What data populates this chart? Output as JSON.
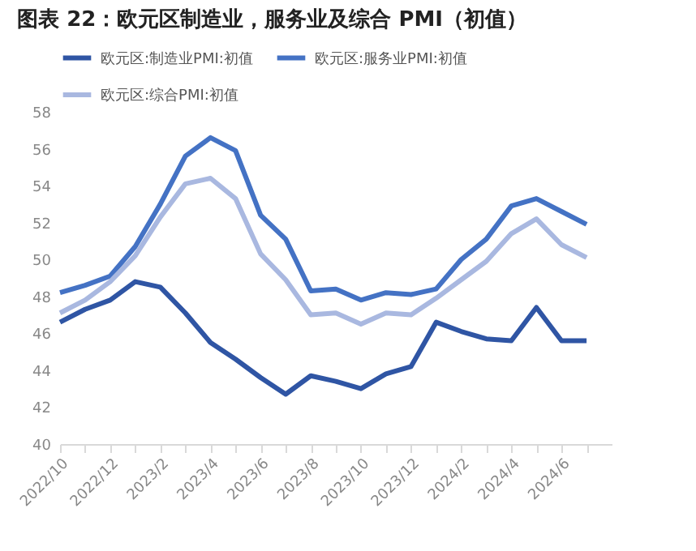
{
  "chart_data": {
    "type": "line",
    "title": "图表 22：欧元区制造业，服务业及综合 PMI（初值）",
    "categories": [
      "2022/10",
      null,
      "2022/12",
      null,
      "2023/2",
      null,
      "2023/4",
      null,
      "2023/6",
      null,
      "2023/8",
      null,
      "2023/10",
      null,
      "2023/12",
      null,
      "2024/2",
      null,
      "2024/4",
      null,
      "2024/6",
      null
    ],
    "series": [
      {
        "name": "欧元区:制造业PMI:初值",
        "color": "#2f55a4",
        "values": [
          46.6,
          47.3,
          47.8,
          48.8,
          48.5,
          47.1,
          45.5,
          44.6,
          43.6,
          42.7,
          43.7,
          43.4,
          43.0,
          43.8,
          44.2,
          46.6,
          46.1,
          45.7,
          45.6,
          47.4,
          45.6,
          45.6
        ]
      },
      {
        "name": "欧元区:服务业PMI:初值",
        "color": "#4472c4",
        "values": [
          48.2,
          48.6,
          49.1,
          50.7,
          53.0,
          55.6,
          56.6,
          55.9,
          52.4,
          51.1,
          48.3,
          48.4,
          47.8,
          48.2,
          48.1,
          48.4,
          50.0,
          51.1,
          52.9,
          53.3,
          52.6,
          51.9
        ]
      },
      {
        "name": "欧元区:综合PMI:初值",
        "color": "#a9b8e0",
        "values": [
          47.1,
          47.8,
          48.8,
          50.2,
          52.3,
          54.1,
          54.4,
          53.3,
          50.3,
          48.9,
          47.0,
          47.1,
          46.5,
          47.1,
          47.0,
          47.9,
          48.9,
          49.9,
          51.4,
          52.2,
          50.8,
          50.1
        ]
      }
    ],
    "ylim": [
      40,
      58
    ],
    "yticks": [
      40,
      42,
      44,
      46,
      48,
      50,
      52,
      54,
      56,
      58
    ],
    "grid": false,
    "legend": "top",
    "marker": "none",
    "line_style": "solid"
  }
}
